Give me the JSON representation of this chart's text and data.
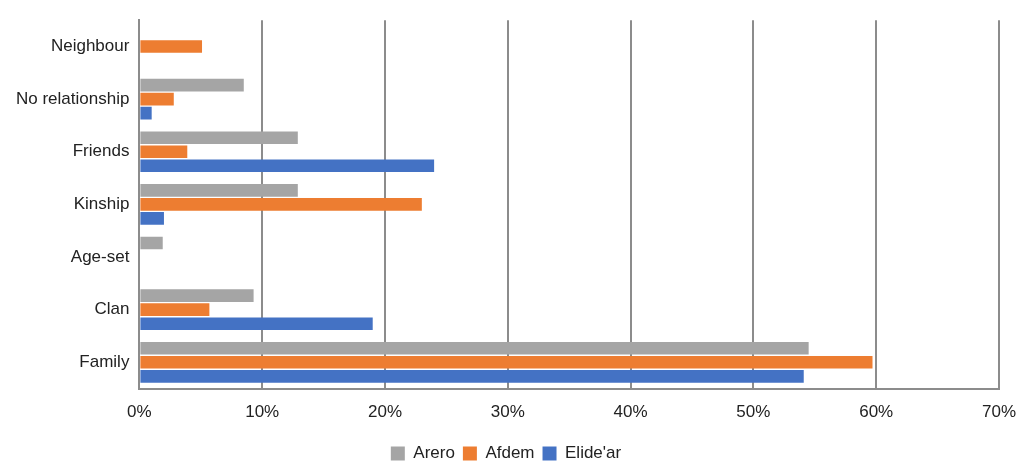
{
  "chart_data": {
    "type": "bar",
    "orientation": "horizontal",
    "categories": [
      "Neighbour",
      "No relationship",
      "Friends",
      "Kinship",
      "Age-set",
      "Clan",
      "Family"
    ],
    "series": [
      {
        "name": "Arero",
        "color": "#a5a5a5",
        "values": [
          null,
          8.5,
          12.9,
          12.9,
          1.9,
          9.3,
          54.5
        ]
      },
      {
        "name": "Afdem",
        "color": "#ed7d31",
        "values": [
          5.1,
          2.8,
          3.9,
          23.0,
          null,
          5.7,
          59.7
        ]
      },
      {
        "name": "Elide'ar",
        "color": "#4472c4",
        "values": [
          null,
          1.0,
          24.0,
          2.0,
          null,
          19.0,
          54.1
        ]
      }
    ],
    "xlim": [
      0,
      70
    ],
    "xticks": [
      {
        "value": 0,
        "label": "0%"
      },
      {
        "value": 10,
        "label": "10%"
      },
      {
        "value": 20,
        "label": "20%"
      },
      {
        "value": 30,
        "label": "30%"
      },
      {
        "value": 40,
        "label": "40%"
      },
      {
        "value": 50,
        "label": "50%"
      },
      {
        "value": 60,
        "label": "60%"
      },
      {
        "value": 70,
        "label": "70%"
      }
    ],
    "grid": "x",
    "legend": "bottom"
  }
}
